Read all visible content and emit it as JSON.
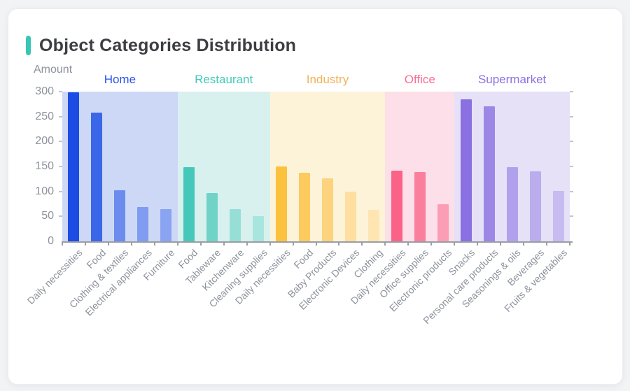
{
  "chart_data": {
    "type": "bar",
    "title": "Object Categories Distribution",
    "ylabel": "Amount",
    "xlabel": "",
    "ylim": [
      0,
      300
    ],
    "y_ticks": [
      0,
      50,
      100,
      150,
      200,
      250,
      300
    ],
    "grid": false,
    "legend_position": "none",
    "groups": [
      {
        "name": "Home",
        "label_color": "#2b52e7",
        "band_color": "#cdd8f6",
        "bar_colors": [
          "#1d4ce4",
          "#3a66e8",
          "#6b8cee",
          "#7f9cf0",
          "#8aa4f1"
        ],
        "categories": [
          "Daily necessities",
          "Food",
          "Clothing & textiles",
          "Electrical appliances",
          "Furniture"
        ],
        "values": [
          298,
          258,
          103,
          69,
          64
        ]
      },
      {
        "name": "Restaurant",
        "label_color": "#41cbb8",
        "band_color": "#d8f1ee",
        "bar_colors": [
          "#45c8ba",
          "#6fd3c8",
          "#96dfd7",
          "#a8e5df"
        ],
        "categories": [
          "Food",
          "Tableware",
          "Kitchenware",
          "Cleaning supplies"
        ],
        "values": [
          148,
          97,
          65,
          51
        ]
      },
      {
        "name": "Industry",
        "label_color": "#f1b256",
        "band_color": "#fdf3d9",
        "bar_colors": [
          "#fcc13d",
          "#fdca5e",
          "#fdd37d",
          "#fedf9f",
          "#fee5b2"
        ],
        "categories": [
          "Daily necessities",
          "Food",
          "Baby Products",
          "Electronic Devices",
          "Clothing"
        ],
        "values": [
          150,
          138,
          126,
          99,
          63
        ]
      },
      {
        "name": "Office",
        "label_color": "#fa6e93",
        "band_color": "#fcdfe8",
        "bar_colors": [
          "#fa6387",
          "#fa7f9c",
          "#fb9db5"
        ],
        "categories": [
          "Daily necessities",
          "Office supplies",
          "Electronic products"
        ],
        "values": [
          142,
          139,
          74
        ]
      },
      {
        "name": "Supermarket",
        "label_color": "#8b72e2",
        "band_color": "#e6e1f7",
        "bar_colors": [
          "#8a70e0",
          "#9d87e6",
          "#b1a1ec",
          "#bbacee",
          "#c7bbf1"
        ],
        "categories": [
          "Snacks",
          "Personal care products",
          "Seasonings & oils",
          "Beverages",
          "Fruits & vegetables"
        ],
        "values": [
          284,
          271,
          148,
          140,
          101
        ]
      }
    ]
  },
  "style": {
    "accent_color": "#38c6b5",
    "title_color": "#3c3e42",
    "axis_text_color": "#8d929c",
    "axis_line_color": "#9a9ea5",
    "page_background": "#f1f3f5",
    "card_background": "#ffffff"
  }
}
